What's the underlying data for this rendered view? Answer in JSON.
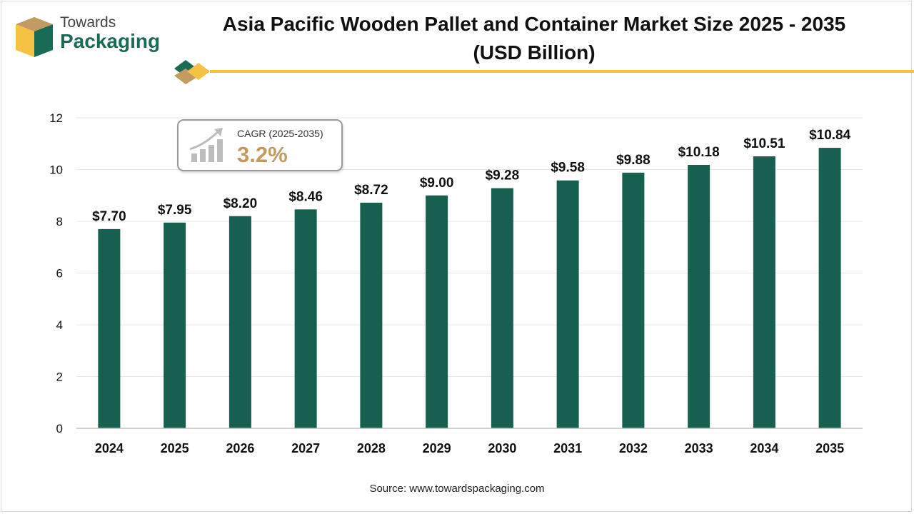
{
  "brand": {
    "line1": "Towards",
    "line2": "Packaging",
    "colors": {
      "green": "#1a6b55",
      "gold": "#f5c244",
      "brown": "#c49a63"
    }
  },
  "title": {
    "line1": "Asia Pacific Wooden Pallet and Container Market Size 2025 - 2035",
    "line2": "(USD Billion)"
  },
  "cagr": {
    "label": "CAGR (2025-2035)",
    "value": "3.2%",
    "icon": "growth-chart-icon"
  },
  "source": "Source: www.towardspackaging.com",
  "chart_data": {
    "type": "bar",
    "categories": [
      "2024",
      "2025",
      "2026",
      "2027",
      "2028",
      "2029",
      "2030",
      "2031",
      "2032",
      "2033",
      "2034",
      "2035"
    ],
    "values": [
      7.7,
      7.95,
      8.2,
      8.46,
      8.72,
      9.0,
      9.28,
      9.58,
      9.88,
      10.18,
      10.51,
      10.84
    ],
    "data_labels": [
      "$7.70",
      "$7.95",
      "$8.20",
      "$8.46",
      "$8.72",
      "$9.00",
      "$9.28",
      "$9.58",
      "$9.88",
      "$10.18",
      "$10.51",
      "$10.84"
    ],
    "yticks": [
      "0",
      "2",
      "4",
      "6",
      "8",
      "10",
      "12"
    ],
    "ylim": [
      0,
      12
    ],
    "grid": true,
    "bar_color": "#17604f"
  }
}
